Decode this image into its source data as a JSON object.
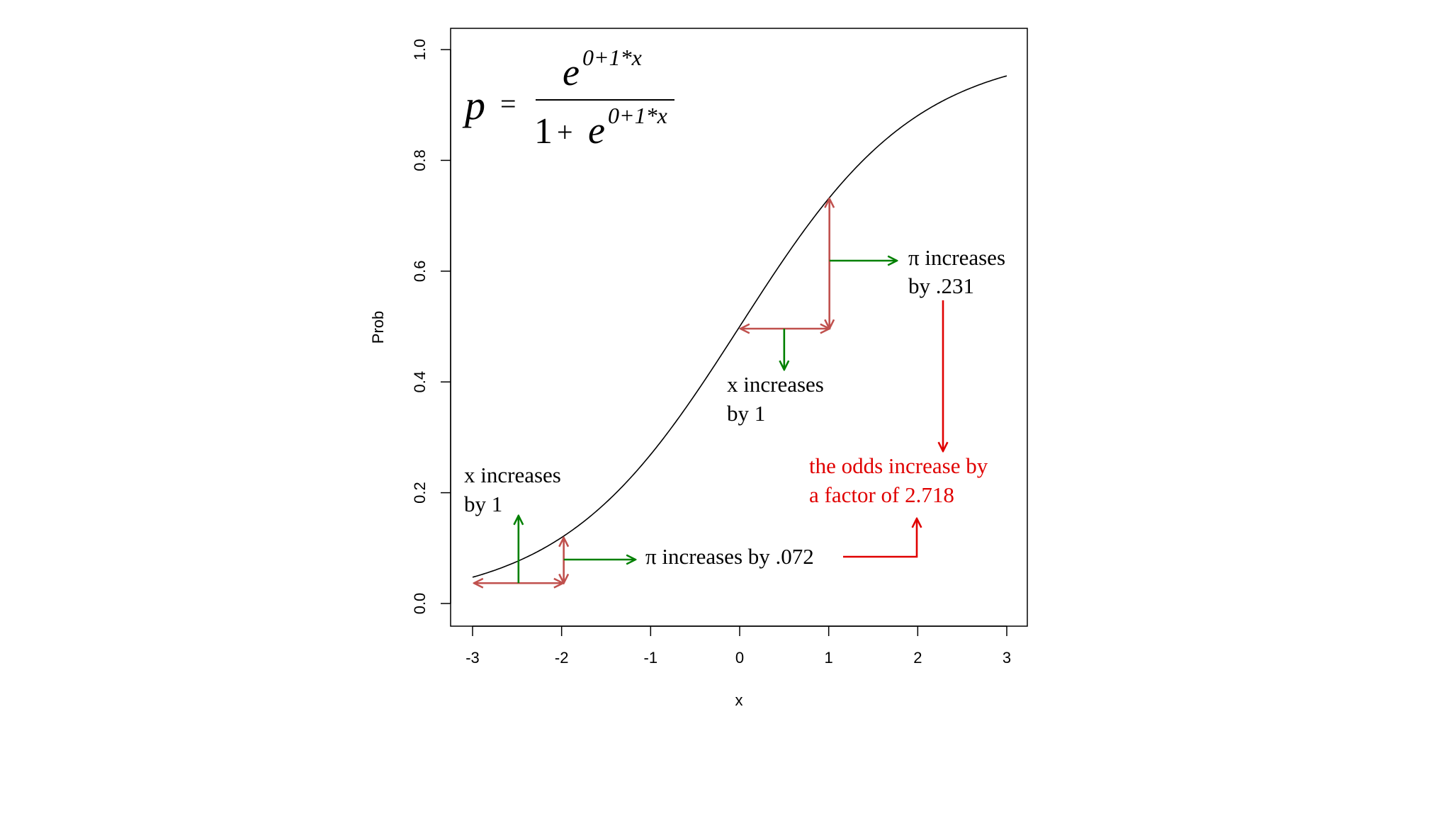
{
  "colors": {
    "curve": "#000000",
    "axis": "#000000",
    "interval_arrow": "#c0504d",
    "label_arrow": "#008000",
    "odds": "#e00000",
    "text": "#000000"
  },
  "chart_data": {
    "type": "line",
    "title": "",
    "xlabel": "x",
    "ylabel": "Prob",
    "xlim": [
      -3,
      3
    ],
    "ylim": [
      0,
      1
    ],
    "x_ticks": [
      -3,
      -2,
      -1,
      0,
      1,
      2,
      3
    ],
    "x_tick_labels": [
      "-3",
      "-2",
      "-1",
      "0",
      "1",
      "2",
      "3"
    ],
    "y_ticks": [
      0,
      0.2,
      0.4,
      0.6,
      0.8,
      1
    ],
    "y_tick_labels": [
      "0.0",
      "0.2",
      "0.4",
      "0.6",
      "0.8",
      "1.0"
    ],
    "grid": false,
    "series": [
      {
        "function": "logistic",
        "intercept": 0,
        "slope": 1,
        "x": [
          -3,
          -2.5,
          -2,
          -1.5,
          -1,
          -0.5,
          0,
          0.5,
          1,
          1.5,
          2,
          2.5,
          3
        ],
        "values": [
          0.047,
          0.076,
          0.119,
          0.182,
          0.269,
          0.378,
          0.5,
          0.622,
          0.731,
          0.818,
          0.881,
          0.924,
          0.953
        ]
      }
    ],
    "formula": {
      "lhs": "p",
      "equals": "=",
      "numerator_base": "e",
      "exponent": "0+1*x",
      "denominator_one": "1",
      "plus": "+",
      "denominator_base": "e"
    },
    "annotations": {
      "left_x_label": [
        "x increases",
        "by 1"
      ],
      "left_pi_label": "π increases by .072",
      "mid_x_label": [
        "x increases",
        "by 1"
      ],
      "right_pi_label": [
        "π increases",
        "by .231"
      ],
      "odds_label": [
        "the odds increase by",
        "a factor of 2.718"
      ]
    },
    "intervals": [
      {
        "x_from": -3,
        "x_to": -2,
        "p_from": 0.047,
        "p_to": 0.119,
        "pi_increase": 0.072
      },
      {
        "x_from": 0,
        "x_to": 1,
        "p_from": 0.5,
        "p_to": 0.731,
        "pi_increase": 0.231
      }
    ],
    "odds_factor": 2.718
  }
}
